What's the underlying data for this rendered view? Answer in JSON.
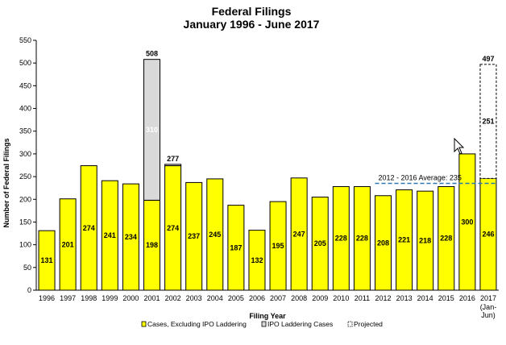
{
  "chart_data": {
    "type": "bar",
    "title": "Federal Filings",
    "subtitle": "January 1996 -  June 2017",
    "xlabel": "Filing Year",
    "ylabel": "Number of Federal Filings",
    "ylim": [
      0,
      550
    ],
    "yticks": [
      0,
      50,
      100,
      150,
      200,
      250,
      300,
      350,
      400,
      450,
      500,
      550
    ],
    "categories": [
      "1996",
      "1997",
      "1998",
      "1999",
      "2000",
      "2001",
      "2002",
      "2003",
      "2004",
      "2005",
      "2006",
      "2007",
      "2008",
      "2009",
      "2010",
      "2011",
      "2012",
      "2013",
      "2014",
      "2015",
      "2016",
      "2017"
    ],
    "last_category_extra": [
      "(Jan-",
      "Jun)"
    ],
    "series": [
      {
        "name": "Cases, Excluding IPO Laddering",
        "color": "#ffff00",
        "values": [
          131,
          201,
          274,
          241,
          234,
          198,
          274,
          237,
          245,
          187,
          132,
          195,
          247,
          205,
          228,
          228,
          208,
          221,
          218,
          228,
          300,
          246
        ]
      },
      {
        "name": "IPO Laddering Cases",
        "color": "#d9d9d9",
        "values": [
          0,
          0,
          0,
          0,
          0,
          310,
          3,
          0,
          0,
          0,
          0,
          0,
          0,
          0,
          0,
          0,
          0,
          0,
          0,
          0,
          0,
          0
        ]
      },
      {
        "name": "Projected",
        "color": "#ffffff",
        "values": [
          0,
          0,
          0,
          0,
          0,
          0,
          0,
          0,
          0,
          0,
          0,
          0,
          0,
          0,
          0,
          0,
          0,
          0,
          0,
          0,
          0,
          251
        ]
      }
    ],
    "bar_labels": [
      "131",
      "201",
      "274",
      "241",
      "234",
      "198",
      "274",
      "237",
      "245",
      "187",
      "132",
      "195",
      "247",
      "205",
      "228",
      "228",
      "208",
      "221",
      "218",
      "228",
      "300",
      "246"
    ],
    "ipo_label": "310",
    "projected_label": "251",
    "totals": [
      {
        "category": "2001",
        "value": 508
      },
      {
        "category": "2002",
        "value": 277
      },
      {
        "category": "2017",
        "value": 497
      }
    ],
    "average_line": {
      "label": "2012 - 2016 Average: 235",
      "value": 235,
      "from": "2012",
      "to": "2017"
    },
    "legend_position": "bottom",
    "grid": false
  }
}
